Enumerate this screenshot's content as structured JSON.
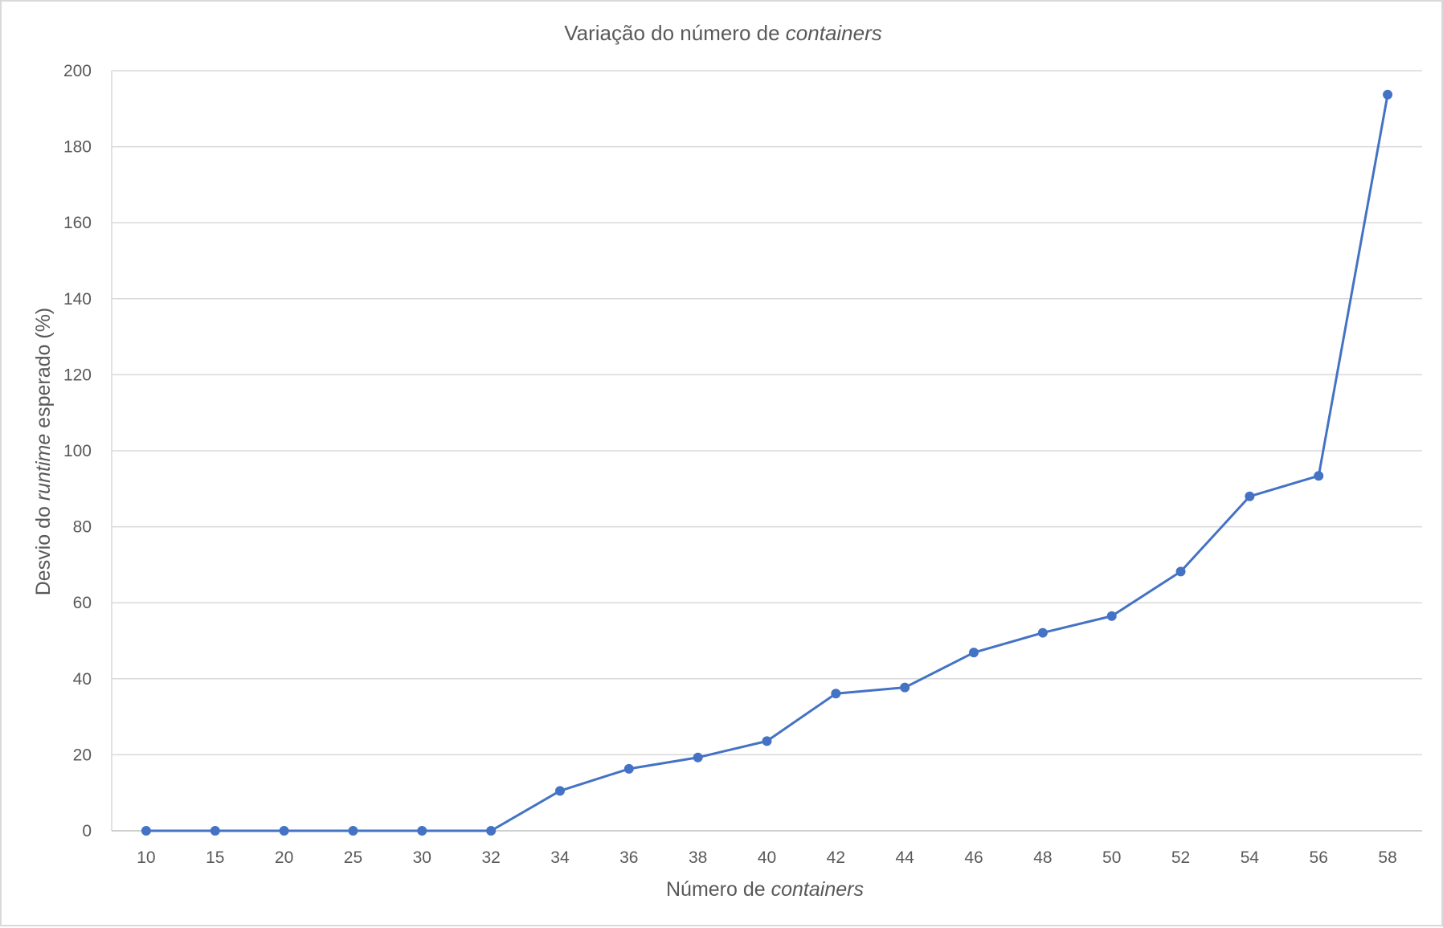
{
  "chart_data": {
    "type": "line",
    "title": {
      "prefix": "Variação do número de ",
      "emphasis": "containers"
    },
    "xlabel": {
      "prefix": "Número de ",
      "emphasis": "containers"
    },
    "ylabel": {
      "prefix": "Desvio do ",
      "emphasis": "runtime",
      "suffix": " esperado  (%)"
    },
    "categories": [
      "10",
      "15",
      "20",
      "25",
      "30",
      "32",
      "34",
      "36",
      "38",
      "40",
      "42",
      "44",
      "46",
      "48",
      "50",
      "52",
      "54",
      "56",
      "58"
    ],
    "series": [
      {
        "values": [
          0,
          0,
          0,
          0,
          0,
          0,
          10.5,
          16.3,
          19.3,
          23.6,
          36.1,
          37.7,
          46.9,
          52.1,
          56.5,
          68.2,
          88.0,
          93.4,
          193.7
        ],
        "color": "#4472c4"
      }
    ],
    "ylim": [
      0,
      200
    ],
    "yticks": [
      0,
      20,
      40,
      60,
      80,
      100,
      120,
      140,
      160,
      180,
      200
    ],
    "grid": true,
    "legend": "none",
    "colors": {
      "gridline": "#d9d9d9",
      "text": "#595959",
      "series": "#4472c4"
    }
  }
}
